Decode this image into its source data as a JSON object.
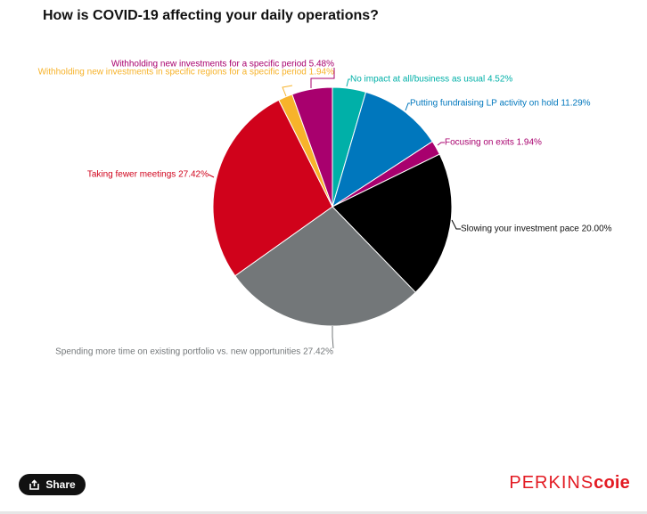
{
  "header": {
    "title": "How is COVID-19 affecting your daily operations?"
  },
  "chart_data": {
    "type": "pie",
    "title": "How is COVID-19 affecting your daily operations?",
    "slices": [
      {
        "label": "No impact at all/business as usual 4.52%",
        "value": 4.52,
        "color": "#00b0a8"
      },
      {
        "label": "Putting fundraising LP activity on hold 11.29%",
        "value": 11.29,
        "color": "#0077bd"
      },
      {
        "label": "Focusing on exits 1.94%",
        "value": 1.94,
        "color": "#a8006e"
      },
      {
        "label": "Slowing your investment pace 20.00%",
        "value": 20.0,
        "color": "#000000"
      },
      {
        "label": "Spending more time on existing portfolio vs. new opportunities 27.42%",
        "value": 27.42,
        "color": "#737779"
      },
      {
        "label": "Taking fewer meetings 27.42%",
        "value": 27.42,
        "color": "#d0021b"
      },
      {
        "label": "Withholding new investments in specific regions for a specific period 1.94%",
        "value": 1.94,
        "color": "#f7b32b"
      },
      {
        "label": "Withholding new investments for a specific period 5.48%",
        "value": 5.48,
        "color": "#a8006e"
      }
    ],
    "start_angle": "top (12 o'clock)",
    "direction": "clockwise"
  },
  "footer": {
    "share_label": "Share",
    "share_icon": "share-icon",
    "brand_part1": "PERKINS",
    "brand_part2": "coie",
    "brand_color": "#e31b23"
  }
}
